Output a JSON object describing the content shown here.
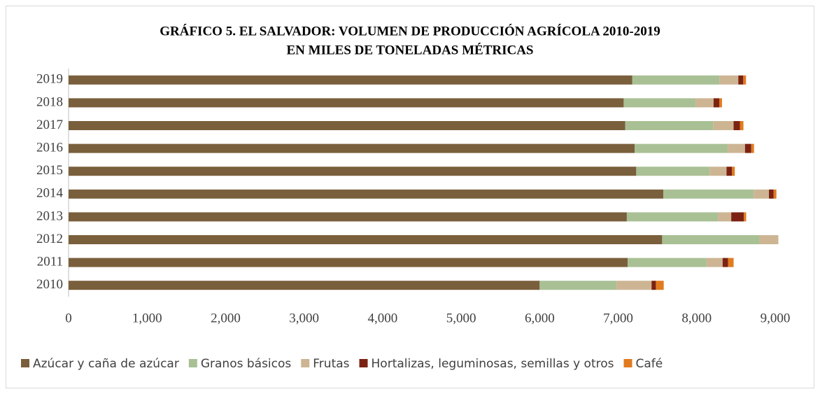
{
  "chart_data": {
    "type": "stacked-barh",
    "title": [
      "GRÁFICO 5. EL SALVADOR: VOLUMEN DE PRODUCCIÓN AGRÍCOLA 2010-2019",
      "EN MILES DE TONELADAS MÉTRICAS"
    ],
    "categories": [
      "2019",
      "2018",
      "2017",
      "2016",
      "2015",
      "2014",
      "2013",
      "2012",
      "2011",
      "2010"
    ],
    "series": [
      {
        "name": "Azúcar y caña de azúcar",
        "color": "#7a5f3c",
        "values": [
          7180,
          7070,
          7090,
          7210,
          7230,
          7575,
          7110,
          7560,
          7120,
          6000
        ]
      },
      {
        "name": "Granos básicos",
        "color": "#a9c095",
        "values": [
          1110,
          915,
          1120,
          1185,
          935,
          1150,
          1160,
          1240,
          1005,
          980
        ]
      },
      {
        "name": "Frutas",
        "color": "#cdb594",
        "values": [
          240,
          230,
          260,
          220,
          215,
          195,
          170,
          240,
          205,
          445
        ]
      },
      {
        "name": "Hortalizas, leguminosas, semillas y otros",
        "color": "#7b2212",
        "values": [
          63,
          72,
          80,
          80,
          70,
          60,
          160,
          0,
          70,
          55
        ]
      },
      {
        "name": "Café",
        "color": "#e07b1f",
        "values": [
          35,
          35,
          45,
          35,
          35,
          35,
          30,
          0,
          70,
          100
        ]
      }
    ],
    "xlim": [
      0,
      9000
    ],
    "xticks": [
      0,
      {
        "value": 1000,
        "label": "1,000"
      },
      {
        "value": 2000,
        "label": "2,000"
      },
      {
        "value": 3000,
        "label": "3,000"
      },
      {
        "value": 4000,
        "label": "4,000"
      },
      {
        "value": 5000,
        "label": "5,000"
      },
      {
        "value": 6000,
        "label": "6,000"
      },
      {
        "value": 7000,
        "label": "7,000"
      },
      {
        "value": 8000,
        "label": "8,000"
      },
      {
        "value": 9000,
        "label": "9,000"
      }
    ],
    "grid": false,
    "legend": "bottom"
  }
}
